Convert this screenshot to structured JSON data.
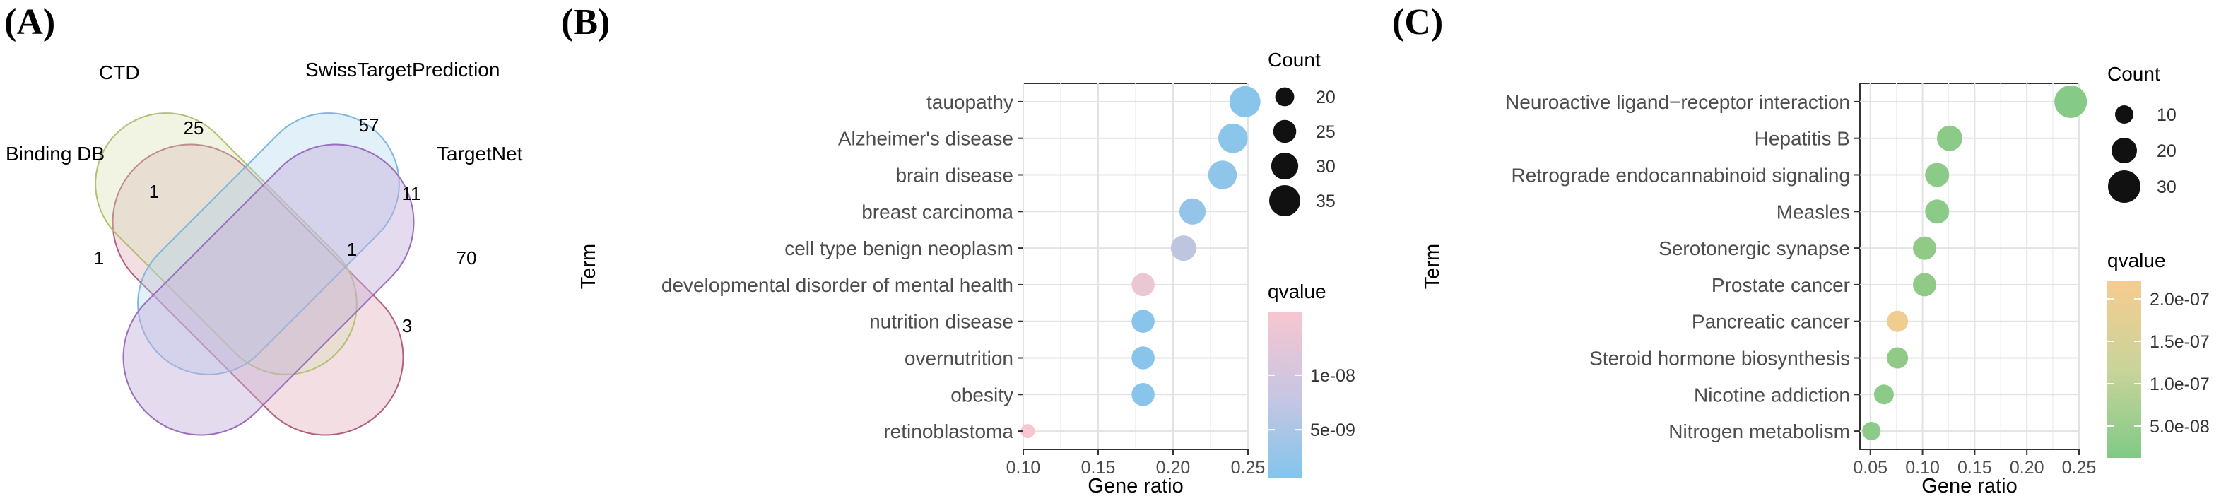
{
  "panel_labels": {
    "a": "(A)",
    "b": "(B)",
    "c": "(C)"
  },
  "colors": {
    "set_binding_db": "#d9a0b0",
    "set_ctd": "#d8dfae",
    "set_swiss": "#a9d3ee",
    "set_targetnet": "#c6afd9",
    "low_q_blue": "#83c5ec",
    "high_q_pink": "#f7c6d0",
    "low_q_green": "#7fca86",
    "high_q_orange": "#f5cc8f",
    "grid": "#e5e5e5"
  },
  "chart_data": [
    {
      "type": "venn",
      "panel": "A",
      "sets": [
        "Binding DB",
        "CTD",
        "SwissTargetPrediction",
        "TargetNet"
      ],
      "region_counts": [
        {
          "sets": [
            "CTD"
          ],
          "count": "25"
        },
        {
          "sets": [
            "SwissTargetPrediction"
          ],
          "count": "57"
        },
        {
          "sets": [
            "Binding DB",
            "CTD"
          ],
          "count": "1"
        },
        {
          "sets": [
            "SwissTargetPrediction",
            "TargetNet"
          ],
          "count": "11"
        },
        {
          "sets": [
            "Binding DB"
          ],
          "count": "1"
        },
        {
          "sets": [
            "CTD",
            "SwissTargetPrediction",
            "TargetNet"
          ],
          "count": "1"
        },
        {
          "sets": [
            "TargetNet"
          ],
          "count": "70"
        },
        {
          "sets": [
            "CTD",
            "TargetNet"
          ],
          "count": "3"
        }
      ]
    },
    {
      "type": "scatter",
      "subtype": "dot plot",
      "panel": "B",
      "xlabel": "Gene ratio",
      "ylabel": "Term",
      "xlim": [
        0.1,
        0.25
      ],
      "xticks": [
        0.1,
        0.15,
        0.2,
        0.25
      ],
      "xtick_labels": [
        "0.10",
        "0.15",
        "0.20",
        "0.25"
      ],
      "terms": [
        "tauopathy",
        "Alzheimer's disease",
        "brain disease",
        "breast carcinoma",
        "cell type benign neoplasm",
        "developmental disorder of mental health",
        "nutrition disease",
        "overnutrition",
        "obesity",
        "retinoblastoma"
      ],
      "gene_ratio": [
        0.248,
        0.24,
        0.233,
        0.213,
        0.207,
        0.18,
        0.18,
        0.18,
        0.18,
        0.103
      ],
      "count": [
        35,
        33,
        32,
        29,
        28,
        25,
        25,
        25,
        25,
        14
      ],
      "qvalue_level": [
        0.05,
        0.08,
        0.1,
        0.15,
        0.5,
        0.9,
        0.05,
        0.05,
        0.05,
        1.0
      ],
      "size_legend": {
        "title": "Count",
        "labels": [
          "20",
          "25",
          "30",
          "35"
        ],
        "values": [
          20,
          25,
          30,
          35
        ]
      },
      "color_legend": {
        "title": "qvalue",
        "labels": [
          "1e-08",
          "5e-09"
        ],
        "levels": [
          0.62,
          0.29
        ]
      }
    },
    {
      "type": "scatter",
      "subtype": "dot plot",
      "panel": "C",
      "xlabel": "Gene ratio",
      "ylabel": "Term",
      "xlim": [
        0.04,
        0.25
      ],
      "xticks": [
        0.05,
        0.1,
        0.15,
        0.2,
        0.25
      ],
      "xtick_labels": [
        "0.05",
        "0.10",
        "0.15",
        "0.20",
        "0.25"
      ],
      "terms": [
        "Neuroactive ligand−receptor interaction",
        "Hepatitis B",
        "Retrograde endocannabinoid signaling",
        "Measles",
        "Serotonergic synapse",
        "Prostate cancer",
        "Pancreatic cancer",
        "Steroid hormone biosynthesis",
        "Nicotine addiction",
        "Nitrogen metabolism"
      ],
      "gene_ratio": [
        0.242,
        0.126,
        0.114,
        0.114,
        0.102,
        0.102,
        0.076,
        0.076,
        0.063,
        0.051
      ],
      "count": [
        30,
        20,
        18,
        18,
        17,
        17,
        14,
        14,
        12,
        10
      ],
      "qvalue_level": [
        0.05,
        0.1,
        0.1,
        0.1,
        0.15,
        0.15,
        0.95,
        0.15,
        0.1,
        0.1
      ],
      "size_legend": {
        "title": "Count",
        "labels": [
          "10",
          "20",
          "30"
        ],
        "values": [
          10,
          20,
          30
        ]
      },
      "color_legend": {
        "title": "qvalue",
        "labels": [
          "2.0e-07",
          "1.5e-07",
          "1.0e-07",
          "5.0e-08"
        ],
        "levels": [
          0.9,
          0.66,
          0.42,
          0.18
        ]
      }
    }
  ]
}
